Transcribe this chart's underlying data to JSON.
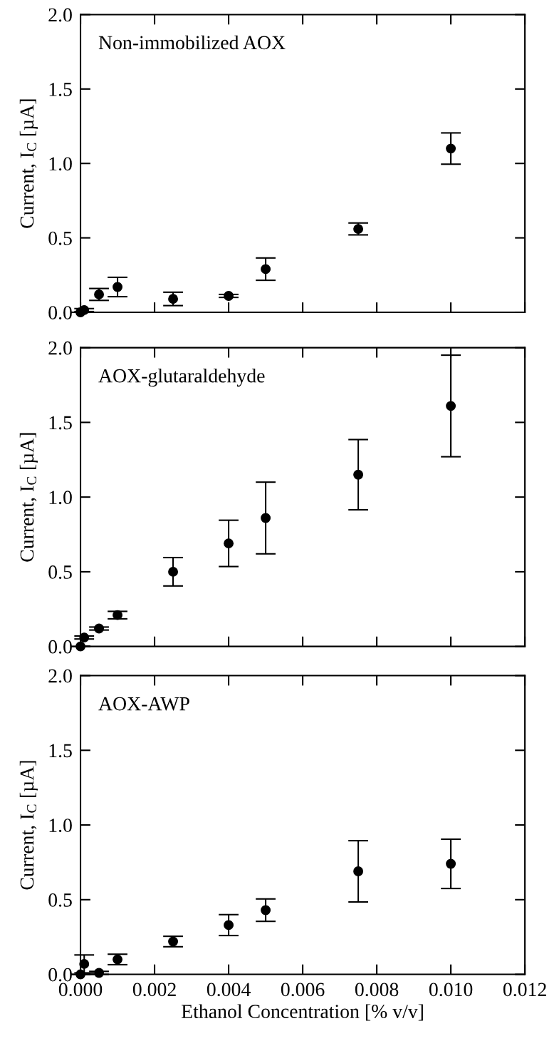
{
  "chart_data": [
    {
      "type": "scatter",
      "annotations": [
        "Non-immobilized AOX"
      ],
      "ylabel": "Current, I$_{C}$ [µA]",
      "x": [
        0,
        0.0001,
        0.0005,
        0.001,
        0.0025,
        0.004,
        0.005,
        0.0075,
        0.01
      ],
      "series": [
        {
          "color": "#000000",
          "values": [
            0,
            0.015,
            0.12,
            0.17,
            0.09,
            0.11,
            0.29,
            0.56,
            1.1
          ],
          "errors": [
            null,
            0.01,
            0.04,
            0.065,
            0.045,
            0.01,
            0.075,
            0.04,
            0.105
          ]
        }
      ],
      "xlim": [
        0,
        0.012
      ],
      "xticks": [
        0,
        0.002,
        0.004,
        0.006,
        0.008,
        0.01,
        0.012
      ],
      "ylim": [
        0,
        2
      ],
      "yticks": [
        {
          "value": 0,
          "label": "0.0"
        },
        {
          "value": 0.5,
          "label": "0.5"
        },
        {
          "value": 1,
          "label": "1.0"
        },
        {
          "value": 1.5,
          "label": "1.5"
        },
        {
          "value": 2,
          "label": "2.0"
        }
      ],
      "tick_labels": "y",
      "marker": "circle",
      "grid": false,
      "legend": false
    },
    {
      "type": "scatter",
      "annotations": [
        "AOX-glutaraldehyde"
      ],
      "ylabel": "Current, I$_{C}$ [µA]",
      "x": [
        0,
        0.0001,
        0.0005,
        0.001,
        0.0025,
        0.004,
        0.005,
        0.0075,
        0.01
      ],
      "series": [
        {
          "color": "#000000",
          "values": [
            0,
            0.06,
            0.12,
            0.21,
            0.5,
            0.69,
            0.86,
            1.15,
            1.61
          ],
          "errors": [
            null,
            0.01,
            0.01,
            0.025,
            0.095,
            0.155,
            0.24,
            0.235,
            0.34
          ]
        }
      ],
      "xlim": [
        0,
        0.012
      ],
      "xticks": [
        0,
        0.002,
        0.004,
        0.006,
        0.008,
        0.01,
        0.012
      ],
      "ylim": [
        0,
        2
      ],
      "yticks": [
        {
          "value": 0,
          "label": "0.0"
        },
        {
          "value": 0.5,
          "label": "0.5"
        },
        {
          "value": 1,
          "label": "1.0"
        },
        {
          "value": 1.5,
          "label": "1.5"
        },
        {
          "value": 2,
          "label": "2.0"
        }
      ],
      "tick_labels": "y",
      "marker": "circle",
      "grid": false,
      "legend": false
    },
    {
      "type": "scatter",
      "annotations": [
        "AOX-AWP"
      ],
      "ylabel": "Current, I$_{C}$ [µA]",
      "xlabel": "Ethanol Concentration [% v/v]",
      "x": [
        0,
        0.0001,
        0.0005,
        0.001,
        0.0025,
        0.004,
        0.005,
        0.0075,
        0.01
      ],
      "series": [
        {
          "color": "#000000",
          "values": [
            0,
            0.07,
            0.01,
            0.1,
            0.22,
            0.33,
            0.43,
            0.69,
            0.74
          ],
          "errors": [
            null,
            0.06,
            0.01,
            0.035,
            0.035,
            0.07,
            0.075,
            0.205,
            0.165
          ]
        }
      ],
      "xlim": [
        0,
        0.012
      ],
      "xticks": [
        {
          "value": 0,
          "label": "0.000"
        },
        {
          "value": 0.002,
          "label": "0.002"
        },
        {
          "value": 0.004,
          "label": "0.004"
        },
        {
          "value": 0.006,
          "label": "0.006"
        },
        {
          "value": 0.008,
          "label": "0.008"
        },
        {
          "value": 0.01,
          "label": "0.010"
        },
        {
          "value": 0.012,
          "label": "0.012"
        }
      ],
      "ylim": [
        0,
        2
      ],
      "yticks": [
        {
          "value": 0,
          "label": "0.0"
        },
        {
          "value": 0.5,
          "label": "0.5"
        },
        {
          "value": 1,
          "label": "1.0"
        },
        {
          "value": 1.5,
          "label": "1.5"
        },
        {
          "value": 2,
          "label": "2.0"
        }
      ],
      "marker": "circle",
      "grid": false,
      "legend": false
    }
  ]
}
